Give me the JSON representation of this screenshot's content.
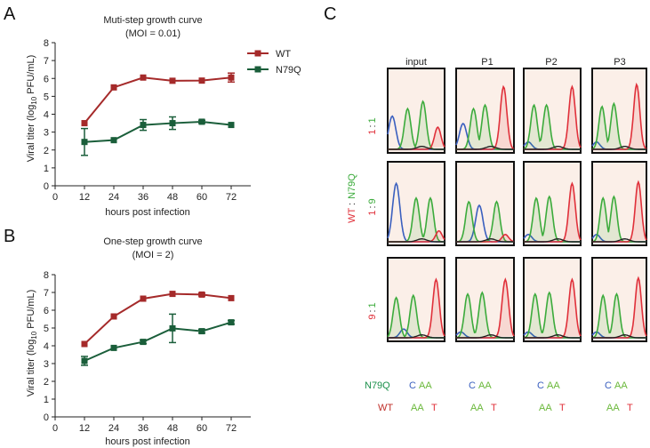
{
  "panels": {
    "a_letter": "A",
    "b_letter": "B",
    "c_letter": "C"
  },
  "colors": {
    "wt": "#a52a2a",
    "n79q": "#1a5e3a",
    "trace_blue": "#3a5fbf",
    "trace_green": "#3cab3c",
    "trace_red": "#e0303a",
    "trace_black": "#222222",
    "cell_bg": "#fbefe8"
  },
  "chart_data": [
    {
      "type": "line",
      "title": "Muti-step growth curve",
      "subtitle": "(MOI = 0.01)",
      "xlabel": "hours post infection",
      "ylabel_prefix": "Viral titer (log",
      "ylabel_sub": "10",
      "ylabel_suffix": " PFU/mL)",
      "xlim": [
        0,
        80
      ],
      "ylim": [
        0,
        8
      ],
      "x_ticks": [
        0,
        12,
        24,
        36,
        48,
        60,
        72
      ],
      "y_ticks": [
        0,
        1,
        2,
        3,
        4,
        5,
        6,
        7,
        8
      ],
      "x": [
        12,
        24,
        36,
        48,
        60,
        72
      ],
      "legend_position": "top-right",
      "series": [
        {
          "name": "WT",
          "marker": "square",
          "values": [
            3.5,
            5.5,
            6.05,
            5.87,
            5.88,
            6.05
          ],
          "err": [
            0.05,
            0.05,
            0.05,
            0.05,
            0.05,
            0.25
          ]
        },
        {
          "name": "N79Q",
          "marker": "square",
          "values": [
            2.45,
            2.55,
            3.4,
            3.5,
            3.58,
            3.4
          ],
          "err": [
            0.75,
            0.05,
            0.3,
            0.35,
            0.08,
            0.05
          ]
        }
      ]
    },
    {
      "type": "line",
      "title": "One-step growth curve",
      "subtitle": "(MOI = 2)",
      "xlabel": "hours post infection",
      "ylabel_prefix": "Viral titer (log",
      "ylabel_sub": "10",
      "ylabel_suffix": " PFU/mL)",
      "xlim": [
        0,
        80
      ],
      "ylim": [
        0,
        8
      ],
      "x_ticks": [
        0,
        12,
        24,
        36,
        48,
        60,
        72
      ],
      "y_ticks": [
        0,
        1,
        2,
        3,
        4,
        5,
        6,
        7,
        8
      ],
      "x": [
        12,
        24,
        36,
        48,
        60,
        72
      ],
      "series": [
        {
          "name": "WT",
          "marker": "square",
          "values": [
            4.1,
            5.65,
            6.65,
            6.92,
            6.88,
            6.68
          ],
          "err": [
            0.05,
            0.05,
            0.05,
            0.05,
            0.08,
            0.05
          ]
        },
        {
          "name": "N79Q",
          "marker": "square",
          "values": [
            3.15,
            3.88,
            4.22,
            4.98,
            4.82,
            5.32
          ],
          "err": [
            0.25,
            0.05,
            0.1,
            0.8,
            0.1,
            0.1
          ]
        }
      ]
    }
  ],
  "chromatogram": {
    "columns": [
      "input",
      "P1",
      "P2",
      "P3"
    ],
    "rows": [
      {
        "ratio_left": "1",
        "ratio_sep": ":",
        "ratio_right": "1"
      },
      {
        "ratio_left": "1",
        "ratio_sep": ":",
        "ratio_right": "9"
      },
      {
        "ratio_left": "9",
        "ratio_sep": ":",
        "ratio_right": "1"
      }
    ],
    "axis_left": "WT",
    "axis_sep": ":",
    "axis_right": "N79Q",
    "seq_rows": [
      {
        "label": "N79Q",
        "base1": "C",
        "base2": "AA"
      },
      {
        "label": "WT",
        "base1": "AA",
        "base2": "T"
      }
    ]
  }
}
